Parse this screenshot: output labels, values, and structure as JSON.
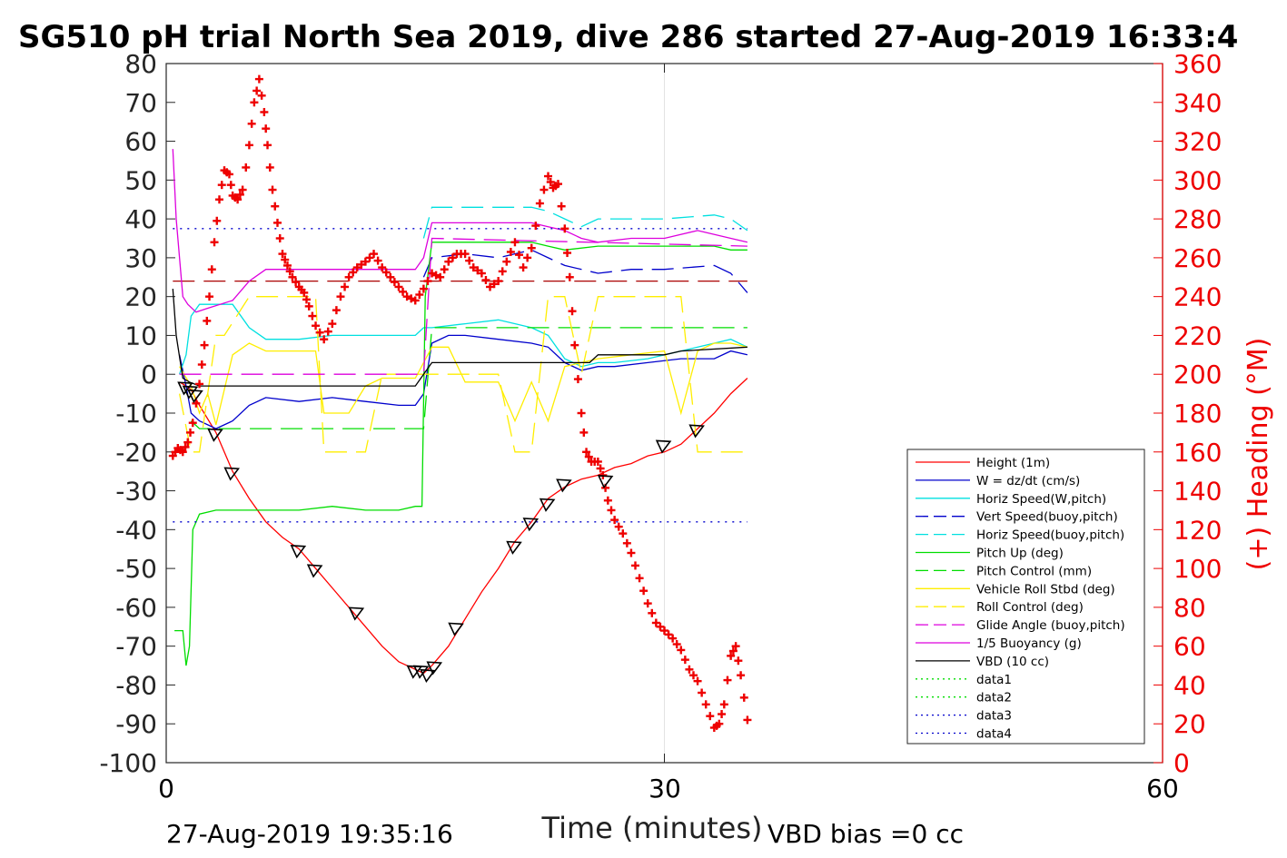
{
  "chart_data": {
    "type": "line",
    "title": "SG510 pH trial North Sea 2019, dive 286 started 27-Aug-2019 16:33:4",
    "xlabel": "Time (minutes)",
    "ylabel": "",
    "ylabel_right": "(+) Heading (°M)",
    "footer_left": "27-Aug-2019 19:35:16",
    "footer_right": "VBD bias =0 cc",
    "xlim": [
      0,
      60
    ],
    "ylim": [
      -100,
      80
    ],
    "ylim_right": [
      0,
      360
    ],
    "x_ticks": [
      "0",
      "30",
      "60"
    ],
    "y_ticks": [
      "80",
      "70",
      "60",
      "50",
      "40",
      "30",
      "20",
      "10",
      "0",
      "-10",
      "-20",
      "-30",
      "-40",
      "-50",
      "-60",
      "-70",
      "-80",
      "-90",
      "-100"
    ],
    "y_ticks_right": [
      "360",
      "340",
      "320",
      "300",
      "280",
      "260",
      "240",
      "220",
      "200",
      "180",
      "160",
      "140",
      "120",
      "100",
      "80",
      "60",
      "40",
      "20",
      "0"
    ],
    "grid": "x-only",
    "legend_position": "bottom-right",
    "colors": {
      "height": "#ff0000",
      "w": "#0000cc",
      "horiz_w": "#00e0e0",
      "vert_buoy": "#0000cc",
      "horiz_buoy": "#00e0e0",
      "pitch": "#00dd00",
      "pitch_ctl": "#00dd00",
      "roll": "#ffee00",
      "roll_ctl": "#ffee00",
      "glide": "#dd00dd",
      "buoyancy": "#dd00dd",
      "vbd": "#000000",
      "heading": "#ee0000",
      "right_axis": "#ee0000"
    },
    "series": [
      {
        "name": "Height (1m)",
        "color": "#ff0000",
        "dash": "none",
        "x": [
          0.8,
          1.2,
          1.5,
          2,
          3,
          4,
          5,
          6,
          7,
          8,
          9,
          10,
          11,
          12,
          13,
          14,
          15,
          15.5,
          16,
          17,
          18,
          19,
          20,
          21,
          22,
          23,
          24,
          25,
          26,
          27,
          28,
          29,
          30,
          31,
          32,
          33,
          34,
          35
        ],
        "y": [
          -2,
          -3,
          -4,
          -8,
          -15,
          -25,
          -32,
          -38,
          -42,
          -45,
          -50,
          -55,
          -60,
          -65,
          -70,
          -74,
          -76,
          -77,
          -75,
          -70,
          -63,
          -56,
          -50,
          -43,
          -38,
          -32,
          -29,
          -27,
          -26,
          -24,
          -23,
          -21,
          -20,
          -18,
          -14,
          -10,
          -5,
          -1
        ]
      },
      {
        "name": "W = dz/dt (cm/s)",
        "color": "#0000cc",
        "dash": "none",
        "x": [
          0.8,
          1.2,
          1.5,
          2,
          3,
          4,
          5,
          6,
          8,
          10,
          12,
          14,
          15,
          15.5,
          16,
          17,
          18,
          20,
          22,
          23,
          24,
          25,
          26,
          27,
          29,
          31,
          33,
          34,
          35
        ],
        "y": [
          5,
          -3,
          -10,
          -12,
          -14,
          -12,
          -8,
          -6,
          -7,
          -6,
          -7,
          -8,
          -8,
          -5,
          8,
          10,
          10,
          9,
          8,
          7,
          3,
          1,
          2,
          2,
          3,
          4,
          4,
          6,
          5
        ]
      },
      {
        "name": "Horiz Speed(W,pitch)",
        "color": "#00e0e0",
        "dash": "none",
        "x": [
          0.8,
          1.2,
          1.5,
          2,
          3,
          4,
          5,
          6,
          8,
          10,
          12,
          14,
          15,
          15.5,
          16,
          18,
          20,
          22,
          23,
          24,
          25,
          26,
          27,
          29,
          31,
          33,
          34,
          35
        ],
        "y": [
          0,
          5,
          15,
          18,
          18,
          18,
          12,
          9,
          9,
          10,
          10,
          10,
          10,
          12,
          12,
          13,
          14,
          12,
          10,
          4,
          2,
          3,
          3,
          4,
          6,
          8,
          9,
          7
        ]
      },
      {
        "name": "Vert Speed(buoy,pitch)",
        "color": "#0000cc",
        "dash": "24,10",
        "x": [
          15.5,
          16,
          18,
          20,
          22,
          23,
          24,
          26,
          28,
          30,
          33,
          34,
          35
        ],
        "y": [
          25,
          30,
          31,
          30,
          32,
          30,
          28,
          26,
          27,
          27,
          28,
          26,
          21
        ]
      },
      {
        "name": "Horiz Speed(buoy,pitch)",
        "color": "#00e0e0",
        "dash": "24,10",
        "x": [
          15.5,
          16,
          18,
          20,
          22,
          23,
          24,
          25,
          26,
          28,
          30,
          33,
          34,
          35
        ],
        "y": [
          35,
          43,
          43,
          43,
          43,
          42,
          40,
          38,
          40,
          40,
          40,
          41,
          40,
          37
        ]
      },
      {
        "name": "Pitch Up (deg)",
        "color": "#00dd00",
        "dash": "none",
        "x": [
          0.5,
          1.0,
          1.2,
          1.4,
          1.6,
          2,
          3,
          5,
          8,
          10,
          12,
          14,
          15,
          15.4,
          15.6,
          16,
          18,
          20,
          22,
          23,
          24,
          26,
          28,
          30,
          33,
          34,
          35
        ],
        "y": [
          -66,
          -66,
          -75,
          -70,
          -40,
          -36,
          -35,
          -35,
          -35,
          -34,
          -35,
          -35,
          -34,
          -34,
          20,
          34,
          34,
          34,
          34,
          33,
          32,
          33,
          33,
          33,
          33,
          32,
          32
        ]
      },
      {
        "name": "Pitch Control (mm)",
        "color": "#00dd00",
        "dash": "24,10",
        "x": [
          1.5,
          2,
          15.5,
          16,
          35
        ],
        "y": [
          -12,
          -14,
          -14,
          12,
          12
        ]
      },
      {
        "name": "Vehicle Roll Stbd (deg)",
        "color": "#ffee00",
        "dash": "none",
        "x": [
          0.8,
          1.5,
          2,
          2.5,
          3,
          4,
          5,
          6,
          8,
          9,
          9.5,
          10,
          11,
          12,
          13,
          15,
          15.5,
          16,
          17,
          18,
          20,
          21,
          22,
          23,
          24,
          25,
          26,
          28,
          30,
          31,
          32,
          33,
          34,
          35
        ],
        "y": [
          2,
          -3,
          -10,
          -5,
          -13,
          5,
          8,
          6,
          6,
          6,
          -10,
          -10,
          -10,
          -3,
          -1,
          -1,
          3,
          7,
          7,
          -2,
          -2,
          -12,
          -2,
          -12,
          2,
          3,
          4,
          5,
          6,
          -10,
          6,
          8,
          8,
          7
        ]
      },
      {
        "name": "Roll Control (deg)",
        "color": "#ffee00",
        "dash": "24,10",
        "x": [
          0.8,
          1.5,
          2,
          3,
          3.5,
          5,
          7,
          8,
          9,
          9.5,
          12,
          13,
          15,
          15.5,
          18,
          20,
          21,
          22,
          23,
          24,
          25,
          26,
          28,
          30,
          31,
          32,
          35
        ],
        "y": [
          -5,
          -20,
          -20,
          10,
          10,
          20,
          20,
          20,
          20,
          -20,
          -20,
          0,
          0,
          0,
          0,
          0,
          -20,
          -20,
          20,
          20,
          0,
          20,
          20,
          20,
          20,
          -20,
          -20
        ]
      },
      {
        "name": "Glide Angle (buoy,pitch)",
        "color": "#dd00dd",
        "dash": "24,10",
        "x": [
          0.8,
          15.5,
          16,
          35
        ],
        "y": [
          0,
          0,
          35,
          33
        ]
      },
      {
        "name": "1/5 Buoyancy (g)",
        "color": "#dd00dd",
        "dash": "none",
        "x": [
          0.4,
          0.6,
          1.0,
          1.3,
          1.8,
          2.5,
          4,
          5,
          6,
          8,
          10,
          12,
          14,
          15,
          15.5,
          16,
          18,
          20,
          22,
          23,
          24,
          25,
          26,
          28,
          30,
          32,
          34,
          35
        ],
        "y": [
          58,
          40,
          20,
          18,
          16,
          17,
          19,
          24,
          27,
          27,
          27,
          27,
          27,
          27,
          30,
          39,
          39,
          39,
          39,
          38,
          37,
          35,
          34,
          35,
          35,
          37,
          35,
          34
        ]
      },
      {
        "name": "VBD (10 cc)",
        "color": "#000000",
        "dash": "none",
        "x": [
          0.4,
          0.6,
          1.0,
          1.4,
          2,
          4,
          8,
          12,
          15,
          15.5,
          16,
          20,
          24,
          25.5,
          26,
          30,
          31,
          35
        ],
        "y": [
          22,
          10,
          -1,
          -2,
          -3,
          -3,
          -3,
          -3,
          -3,
          0,
          3,
          3,
          3,
          3,
          5,
          5,
          6,
          7
        ]
      },
      {
        "name": "data1",
        "color": "#00dd00",
        "dash": "2,6",
        "x": [],
        "y": []
      },
      {
        "name": "data2",
        "color": "#00dd00",
        "dash": "2,6",
        "x": [],
        "y": []
      },
      {
        "name": "data3",
        "color": "#0000cc",
        "dash": "2,6",
        "x": [
          0.4,
          35
        ],
        "y": [
          37.5,
          37.5
        ]
      },
      {
        "name": "data4",
        "color": "#0000cc",
        "dash": "2,6",
        "x": [
          0.4,
          35
        ],
        "y": [
          -38,
          -38
        ]
      }
    ],
    "extra_lines": [
      {
        "color": "#aa0000",
        "dash": "24,10",
        "x": [
          0.4,
          35
        ],
        "y": [
          24,
          24
        ]
      }
    ],
    "heading_series": {
      "axis": "right",
      "marker": "+",
      "color": "#ee0000",
      "x": [
        0.4,
        0.7,
        1.0,
        1.3,
        1.6,
        2.0,
        2.3,
        2.6,
        2.9,
        3.2,
        3.5,
        3.8,
        4.0,
        4.3,
        4.6,
        5.0,
        5.3,
        5.6,
        5.9,
        6.1,
        6.4,
        6.7,
        7.0,
        7.3,
        7.6,
        8.0,
        8.3,
        8.6,
        9.0,
        9.5,
        10.0,
        10.5,
        11.0,
        11.5,
        12.0,
        12.5,
        13.0,
        13.5,
        14.0,
        14.5,
        15.0,
        15.5,
        16.0,
        16.5,
        17.0,
        17.5,
        18.0,
        18.5,
        19.0,
        19.5,
        20.0,
        20.5,
        21.0,
        21.5,
        22.0,
        22.5,
        23.0,
        23.3,
        23.6,
        24.0,
        24.3,
        24.6,
        25.0,
        25.3,
        25.6,
        26.0,
        26.3,
        26.6,
        27.0,
        27.5,
        28.0,
        28.5,
        29.0,
        29.5,
        30.0,
        30.5,
        31.0,
        31.5,
        32.0,
        32.5,
        33.0,
        33.3,
        33.6,
        34.0,
        34.3,
        34.6,
        35.0
      ],
      "y": [
        158,
        162,
        160,
        165,
        175,
        195,
        215,
        240,
        268,
        290,
        305,
        303,
        292,
        290,
        295,
        318,
        340,
        352,
        335,
        318,
        295,
        278,
        262,
        256,
        250,
        245,
        242,
        235,
        225,
        218,
        226,
        240,
        250,
        255,
        258,
        262,
        255,
        250,
        245,
        240,
        238,
        244,
        252,
        250,
        258,
        262,
        262,
        255,
        252,
        245,
        248,
        258,
        268,
        255,
        265,
        288,
        302,
        296,
        298,
        275,
        250,
        215,
        180,
        160,
        155,
        155,
        148,
        135,
        125,
        118,
        108,
        95,
        82,
        72,
        68,
        64,
        58,
        48,
        42,
        30,
        18,
        20,
        30,
        55,
        60,
        45,
        22
      ]
    },
    "glider_markers": {
      "x": [
        1.2,
        1.5,
        1.8,
        3.0,
        4.0,
        8.0,
        9.0,
        11.5,
        15.0,
        15.4,
        15.8,
        16.2,
        17.5,
        21.0,
        22.0,
        23.0,
        24.0,
        26.5,
        30.0,
        32.0
      ],
      "y": [
        -3,
        -4,
        -5,
        -15,
        -25,
        -45,
        -50,
        -61,
        -76,
        -76,
        -77,
        -75,
        -65,
        -44,
        -38,
        -33,
        -28,
        -27,
        -18,
        -14
      ]
    }
  }
}
